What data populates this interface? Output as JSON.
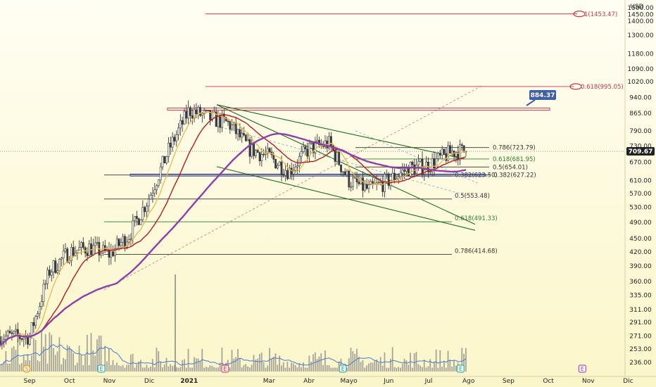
{
  "chart_data": {
    "type": "candlestick",
    "currency_label": "USD",
    "y_scale": "log",
    "ylim": [
      225,
      1540
    ],
    "y_ticks": [
      236,
      253,
      271,
      291,
      311,
      335,
      360,
      390,
      420,
      450,
      490,
      530,
      570,
      610,
      670,
      730,
      790,
      865,
      940,
      1020,
      1090,
      1180,
      1300,
      1400,
      1450,
      1500
    ],
    "y_tick_labels": [
      "236.00",
      "253.00",
      "271.00",
      "291.00",
      "311.00",
      "335.00",
      "360.00",
      "390.00",
      "420.00",
      "450.00",
      "490.00",
      "530.00",
      "570.00",
      "610.00",
      "670.00",
      "730.00",
      "790.00",
      "865.00",
      "940.00",
      "1020.00",
      "1090.00",
      "1180.00",
      "1300.00",
      "1400.00",
      "1450.00",
      "1500.00"
    ],
    "x_ticks": [
      "Sep",
      "Oct",
      "Nov",
      "Dic",
      "2021",
      "Mar",
      "Abr",
      "Mayo",
      "Jun",
      "Jul",
      "Ago",
      "Sep",
      "Oct",
      "Nov",
      "Dic"
    ],
    "x_tick_months": [
      0,
      1,
      2,
      3,
      4,
      6,
      7,
      8,
      9,
      10,
      11,
      12,
      13,
      14,
      15
    ],
    "last_price": 709.67,
    "last_price_label": "709.67",
    "price_target": 884.37,
    "price_target_label": "884.37",
    "price_series_monthly_close": [
      {
        "m": 0,
        "v": 270
      },
      {
        "m": 0.5,
        "v": 380
      },
      {
        "m": 1,
        "v": 420
      },
      {
        "m": 1.5,
        "v": 430
      },
      {
        "m": 2,
        "v": 415
      },
      {
        "m": 2.5,
        "v": 460
      },
      {
        "m": 3,
        "v": 560
      },
      {
        "m": 3.5,
        "v": 720
      },
      {
        "m": 4,
        "v": 880
      },
      {
        "m": 4.5,
        "v": 845
      },
      {
        "m": 5,
        "v": 820
      },
      {
        "m": 5.5,
        "v": 720
      },
      {
        "m": 6,
        "v": 690
      },
      {
        "m": 6.5,
        "v": 640
      },
      {
        "m": 7,
        "v": 720
      },
      {
        "m": 7.5,
        "v": 740
      },
      {
        "m": 8,
        "v": 610
      },
      {
        "m": 8.5,
        "v": 580
      },
      {
        "m": 9,
        "v": 610
      },
      {
        "m": 9.5,
        "v": 650
      },
      {
        "m": 10,
        "v": 660
      },
      {
        "m": 10.6,
        "v": 709.67
      }
    ],
    "fib_levels": [
      {
        "label": "1(1453.47)",
        "value": 1453.47,
        "color": "#c8334a"
      },
      {
        "label": "0.618(995.05)",
        "value": 995.05,
        "color": "#c8334a"
      },
      {
        "label": "0.786(723.79)",
        "value": 723.79,
        "color": "#333333"
      },
      {
        "label": "0.618(681.95)",
        "value": 681.95,
        "color": "#2e7d32"
      },
      {
        "label": "0.5(654.01)",
        "value": 654.01,
        "color": "#333333"
      },
      {
        "label": "0.382(623.50)",
        "value": 623.5,
        "color": "#333333"
      },
      {
        "label": "0.382(627.22)",
        "value": 627.22,
        "color": "#333333"
      },
      {
        "label": "0.5(553.48)",
        "value": 553.48,
        "color": "#333333"
      },
      {
        "label": "0.618(491.33)",
        "value": 491.33,
        "color": "#2e7d32"
      },
      {
        "label": "0.786(414.68)",
        "value": 414.68,
        "color": "#333333"
      }
    ],
    "event_markers": [
      {
        "m": 0,
        "label": "S",
        "kind": "split"
      },
      {
        "m": 1.8,
        "label": "E",
        "kind": "earnings"
      },
      {
        "m": 4.9,
        "label": "E",
        "kind": "earnings"
      },
      {
        "m": 7.85,
        "label": "E",
        "kind": "earnings"
      },
      {
        "m": 10.8,
        "label": "E",
        "kind": "earnings"
      },
      {
        "m": 13.85,
        "label": "E",
        "kind": "earnings-future"
      }
    ],
    "grid": false,
    "colors": {
      "bg_top": "#fffef3",
      "bg_bottom": "#fbf6c9",
      "candle": "#3a3a3a",
      "ma_fast": "#f0b64d",
      "ma_mid": "#b71c1c",
      "ma_slow": "#8e3fa8",
      "volume": "#8a8a8a",
      "volume_ma": "#4a7bd0",
      "channel": "#1e6b1e",
      "fib_red": "#c8334a",
      "level_blue": "#3f51b5",
      "target_box": "#3f5fa6"
    }
  }
}
